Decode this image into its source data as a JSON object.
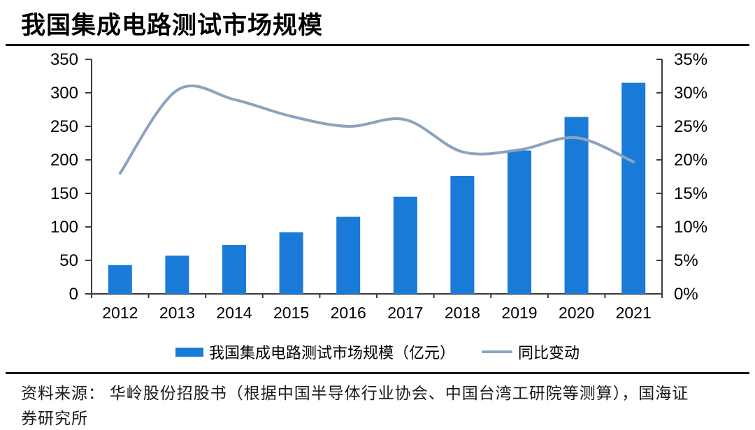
{
  "title": "我国集成电路测试市场规模",
  "legend": {
    "bars_label": "我国集成电路测试市场规模（亿元）",
    "line_label": "同比变动"
  },
  "source_lines": {
    "0": "资料来源： 华岭股份招股书（根据中国半导体行业协会、中国台湾工研院等测算），国海证",
    "1": "券研究所"
  },
  "colors": {
    "bar": "#1A7AD8",
    "line": "#8CA3BF",
    "axis": "#3C3C3C",
    "divider": "#161616",
    "text": "#000000"
  },
  "chart_data": {
    "type": "bar",
    "title": "我国集成电路测试市场规模",
    "categories": [
      "2012",
      "2013",
      "2014",
      "2015",
      "2016",
      "2017",
      "2018",
      "2019",
      "2020",
      "2021"
    ],
    "series": [
      {
        "name": "我国集成电路测试市场规模（亿元）",
        "type": "bar",
        "axis": "left",
        "values": [
          43,
          57,
          73,
          92,
          115,
          145,
          176,
          214,
          264,
          315
        ]
      },
      {
        "name": "同比变动",
        "type": "line",
        "axis": "right",
        "unit": "%",
        "values": [
          18.0,
          30.4,
          29.0,
          26.5,
          25.0,
          26.0,
          21.2,
          21.5,
          23.3,
          19.7
        ]
      }
    ],
    "left_axis": {
      "label": "亿元",
      "min": 0,
      "max": 350,
      "step": 50,
      "tick_labels": [
        "0",
        "50",
        "100",
        "150",
        "200",
        "250",
        "300",
        "350"
      ]
    },
    "right_axis": {
      "label": "同比变动",
      "min": 0,
      "max": 35,
      "step": 5,
      "tick_labels": [
        "0%",
        "5%",
        "10%",
        "15%",
        "20%",
        "25%",
        "30%",
        "35%"
      ]
    },
    "grid": false,
    "legend_position": "bottom"
  }
}
